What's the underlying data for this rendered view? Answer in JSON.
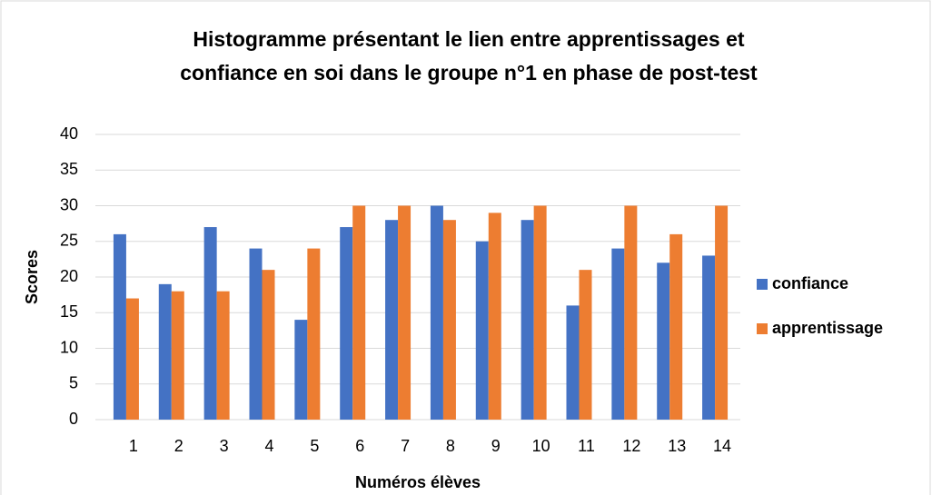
{
  "chart_data": {
    "type": "bar",
    "title": [
      "Histogramme présentant le lien entre apprentissages et",
      "confiance en soi dans le groupe n°1 en phase de post-test"
    ],
    "x_label": "Numéros élèves",
    "y_label": "Scores",
    "categories": [
      "1",
      "2",
      "3",
      "4",
      "5",
      "6",
      "7",
      "8",
      "9",
      "10",
      "11",
      "12",
      "13",
      "14"
    ],
    "series": [
      {
        "name": "confiance",
        "color": "#4472c4",
        "values": [
          26,
          19,
          27,
          24,
          14,
          27,
          28,
          30,
          25,
          28,
          16,
          24,
          22,
          23
        ]
      },
      {
        "name": "apprentissage",
        "color": "#ed7d31",
        "values": [
          17,
          18,
          18,
          21,
          24,
          30,
          30,
          28,
          29,
          30,
          21,
          30,
          26,
          30
        ]
      }
    ],
    "ylim": [
      0,
      40
    ],
    "yticks": [
      0,
      5,
      10,
      15,
      20,
      25,
      30,
      35,
      40
    ],
    "grid": true,
    "legend": "right"
  }
}
